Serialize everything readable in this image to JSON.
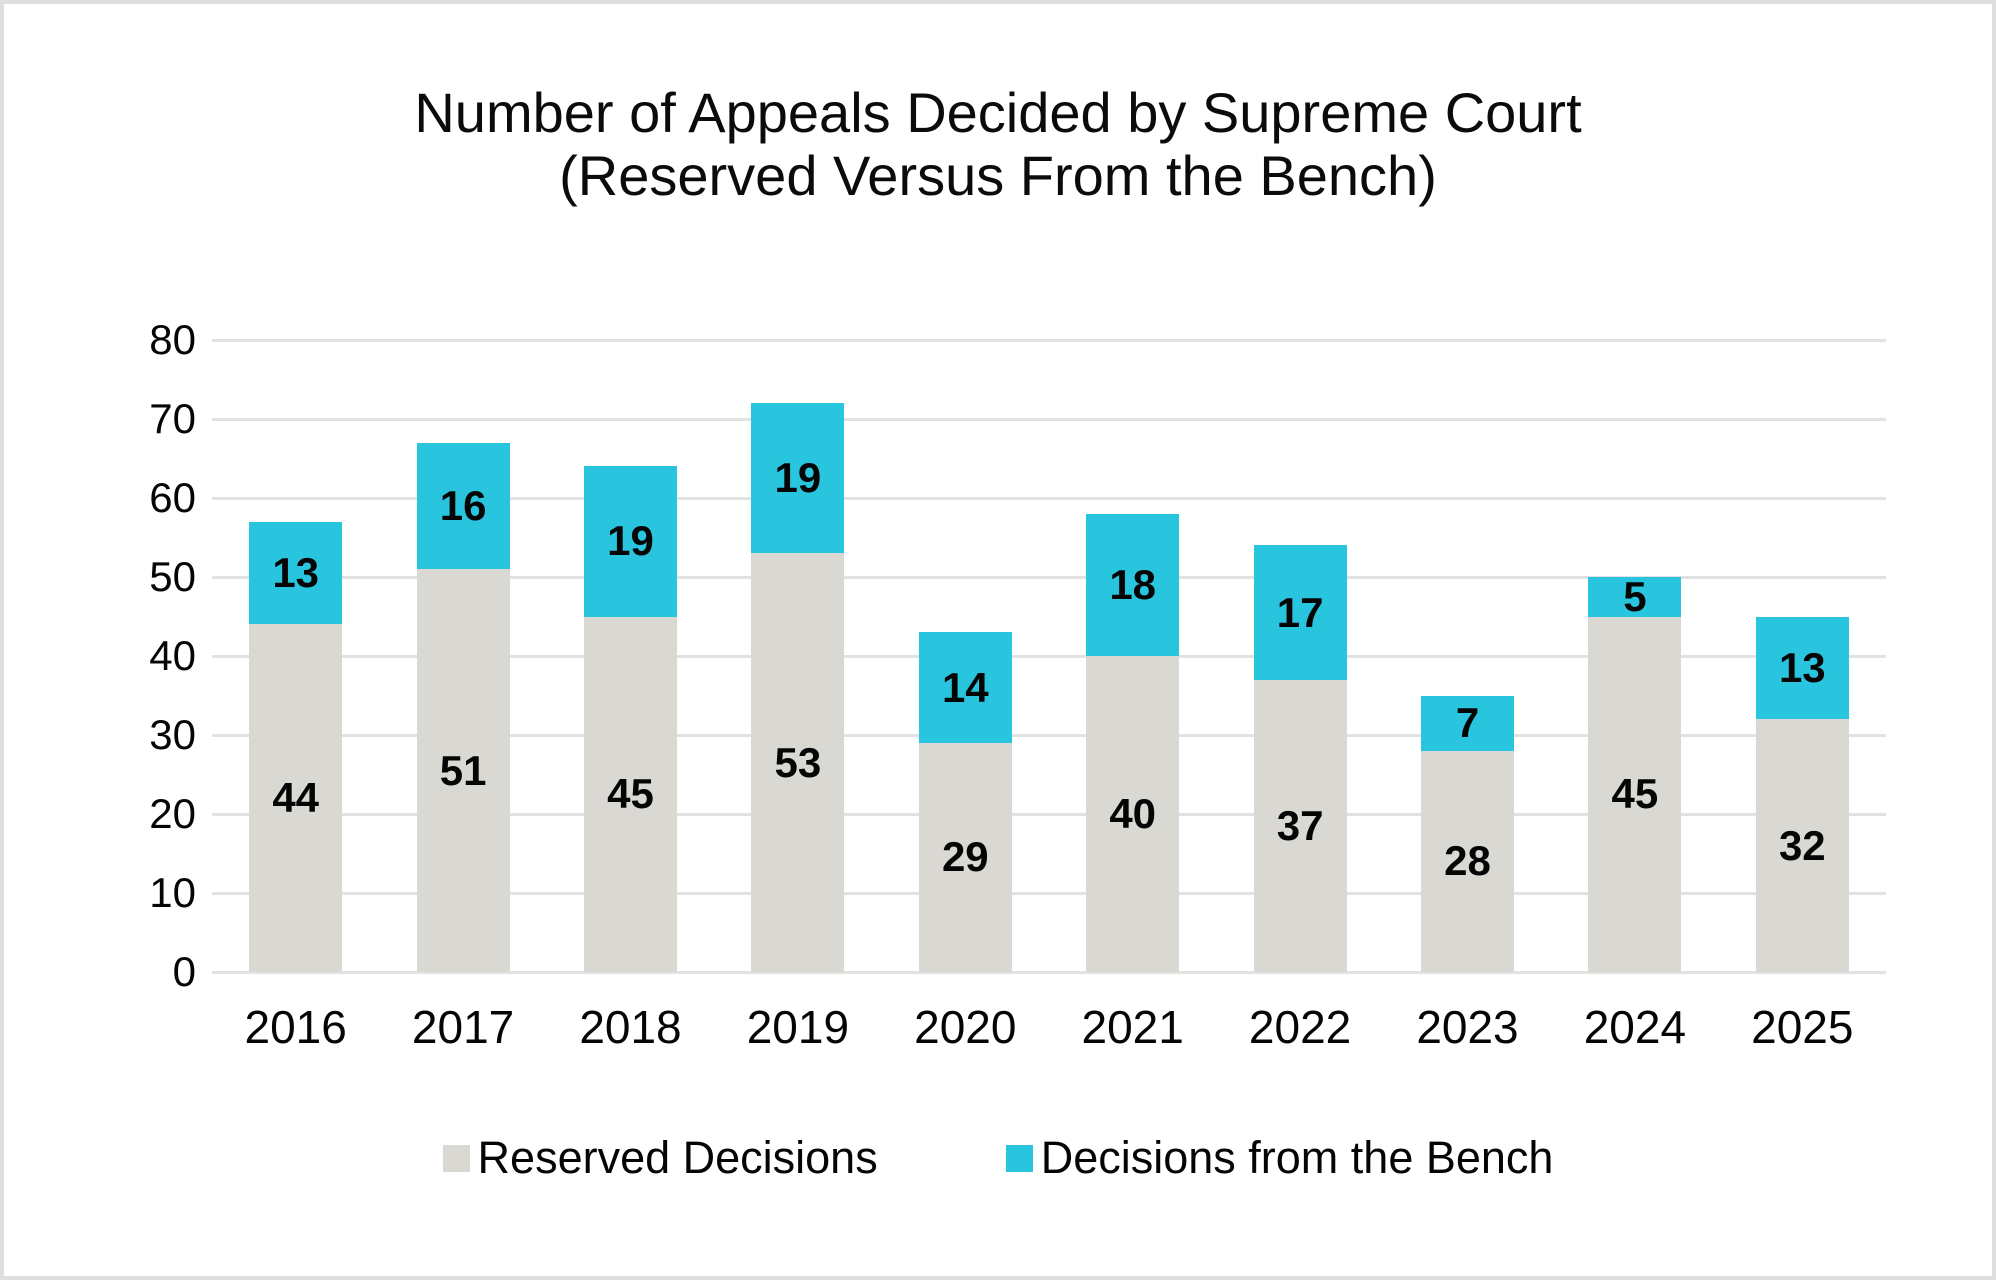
{
  "title": {
    "line1": "Number of Appeals Decided by Supreme Court",
    "line2": "(Reserved Versus From the Bench)"
  },
  "colors": {
    "reserved": "#d9d8d3",
    "bench": "#29c5df",
    "gridline": "#e2e2e2",
    "frame_border": "#dedede",
    "text": "#050505"
  },
  "chart_data": {
    "type": "bar",
    "stacked": true,
    "title": "Number of Appeals Decided by Supreme Court (Reserved Versus From the Bench)",
    "categories": [
      "2016",
      "2017",
      "2018",
      "2019",
      "2020",
      "2021",
      "2022",
      "2023",
      "2024",
      "2025"
    ],
    "series": [
      {
        "name": "Reserved Decisions",
        "color_key": "reserved",
        "values": [
          44,
          51,
          45,
          53,
          29,
          40,
          37,
          28,
          45,
          32
        ]
      },
      {
        "name": "Decisions from the Bench",
        "color_key": "bench",
        "values": [
          13,
          16,
          19,
          19,
          14,
          18,
          17,
          7,
          5,
          13
        ]
      }
    ],
    "totals": [
      57,
      67,
      64,
      72,
      43,
      58,
      54,
      35,
      50,
      45
    ],
    "xlabel": "",
    "ylabel": "",
    "ylim": [
      0,
      80
    ],
    "yticks": [
      0,
      10,
      20,
      30,
      40,
      50,
      60,
      70,
      80
    ],
    "grid": true,
    "data_labels": true,
    "legend_position": "bottom"
  },
  "legend": {
    "items": [
      {
        "label": "Reserved Decisions",
        "color_key": "reserved"
      },
      {
        "label": "Decisions from the Bench",
        "color_key": "bench"
      }
    ]
  }
}
